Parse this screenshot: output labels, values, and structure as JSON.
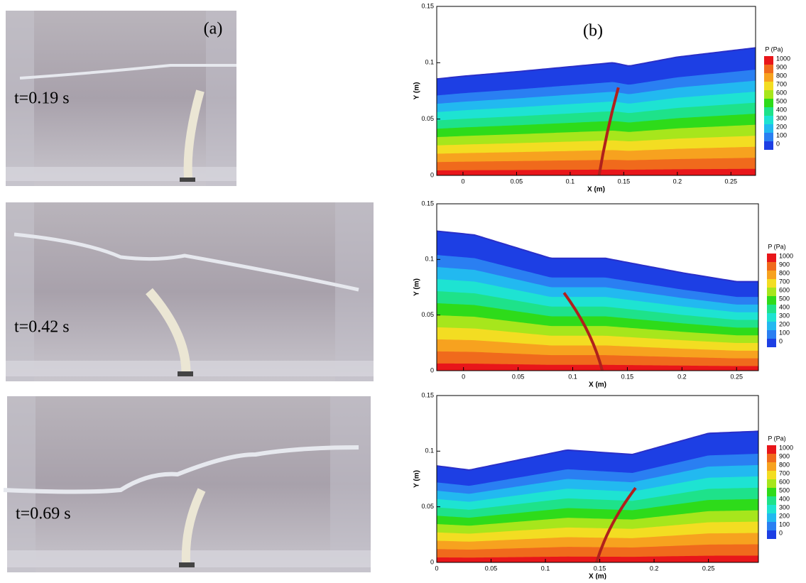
{
  "photos": {
    "label": "(a)",
    "times": [
      "t=0.19 s",
      "t=0.42 s",
      "t=0.69 s"
    ]
  },
  "chart_data": [
    {
      "type": "contour",
      "label": "(b)",
      "xlabel": "X (m)",
      "ylabel": "Y (m)",
      "xlim": [
        -0.0245,
        0.273
      ],
      "ylim": [
        0,
        0.15
      ],
      "xticks": [
        0,
        0.05,
        0.1,
        0.15,
        0.2,
        0.25
      ],
      "yticks": [
        0,
        0.05,
        0.1,
        0.15
      ]
    },
    {
      "type": "contour",
      "xlabel": "X (m)",
      "ylabel": "Y (m)",
      "xlim": [
        -0.0245,
        0.27
      ],
      "ylim": [
        0,
        0.15
      ],
      "xticks": [
        0,
        0.05,
        0.1,
        0.15,
        0.2,
        0.25
      ],
      "yticks": [
        0,
        0.05,
        0.1,
        0.15
      ]
    },
    {
      "type": "contour",
      "xlabel": "X (m)",
      "ylabel": "Y (m)",
      "xlim": [
        0,
        0.296
      ],
      "ylim": [
        0,
        0.15
      ],
      "xticks": [
        0,
        0.05,
        0.1,
        0.15,
        0.2,
        0.25
      ],
      "yticks": [
        0,
        0.05,
        0.1,
        0.15
      ]
    }
  ],
  "colorbar": {
    "title": "P (Pa)",
    "levels": [
      1000,
      900,
      800,
      700,
      600,
      500,
      400,
      300,
      200,
      100,
      0
    ],
    "colors": [
      "#e8161a",
      "#f06a1c",
      "#f7a21f",
      "#f3dd22",
      "#a7e61c",
      "#2edb1a",
      "#1ee28a",
      "#1ee3d2",
      "#22b9f0",
      "#2a7ff2",
      "#1d3fe4"
    ]
  }
}
